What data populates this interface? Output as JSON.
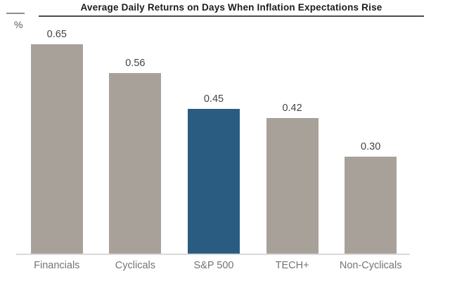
{
  "header": {
    "title": "Average Daily Returns on Days When Inflation Expectations Rise",
    "y_axis_unit": "%"
  },
  "chart_data": {
    "type": "bar",
    "title": "Average Daily Returns on Days When Inflation Expectations Rise",
    "xlabel": "",
    "ylabel": "%",
    "categories": [
      "Financials",
      "Cyclicals",
      "S&P 500",
      "TECH+",
      "Non-Cyclicals"
    ],
    "values": [
      0.65,
      0.56,
      0.45,
      0.42,
      0.3
    ],
    "value_labels": [
      "0.65",
      "0.56",
      "0.45",
      "0.42",
      "0.30"
    ],
    "highlighted_category": "S&P 500",
    "ylim": [
      0,
      0.7
    ],
    "grid": false,
    "legend": false,
    "colors": {
      "bar_default": "#a8a19a",
      "bar_highlight": "#2a5c82",
      "title_text": "#1c1c1c",
      "title_rule": "#4c4c4c",
      "value_text": "#434343",
      "category_text": "#747474",
      "axis_line": "#dadada",
      "unit_text": "#595959",
      "background": "#ffffff"
    }
  }
}
